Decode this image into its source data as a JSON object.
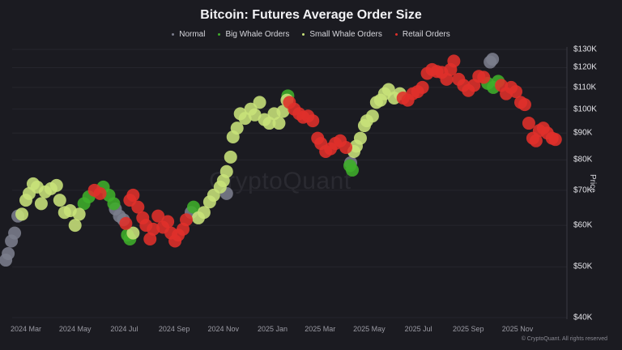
{
  "header": {
    "title": "Bitcoin: Futures Average Order Size"
  },
  "legend": [
    {
      "label": "Normal",
      "color": "#7b7d8c"
    },
    {
      "label": "Big Whale Orders",
      "color": "#3fae2a"
    },
    {
      "label": "Small Whale Orders",
      "color": "#c8e27a"
    },
    {
      "label": "Retail Orders",
      "color": "#e0302a"
    }
  ],
  "axes": {
    "y_label": "Price",
    "y_ticks": [
      "$130K",
      "$120K",
      "$110K",
      "$100K",
      "$90K",
      "$80K",
      "$70K",
      "$60K",
      "$50K",
      "$40K"
    ],
    "x_ticks": [
      "2024 Mar",
      "2024 May",
      "2024 Jul",
      "2024 Sep",
      "2024 Nov",
      "2025 Jan",
      "2025 Mar",
      "2025 May",
      "2025 Jul",
      "2025 Sep",
      "2025 Nov"
    ]
  },
  "watermark": "CryptoQuant",
  "footer": {
    "copyright": "© CryptoQuant. All rights reserved"
  },
  "chart_data": {
    "type": "scatter",
    "title": "Bitcoin: Futures Average Order Size",
    "xlabel": "",
    "ylabel": "Price",
    "y_scale": "log",
    "ylim": [
      40000,
      130000
    ],
    "x_range": [
      "2024-02",
      "2025-12"
    ],
    "grid": true,
    "legend_position": "top",
    "categories": [
      "Normal",
      "Big Whale Orders",
      "Small Whale Orders",
      "Retail Orders"
    ],
    "series": [
      {
        "name": "Normal",
        "color": "#7b7d8c",
        "points": [
          {
            "x": "2024-02-05",
            "y": 51500
          },
          {
            "x": "2024-02-08",
            "y": 53000
          },
          {
            "x": "2024-02-12",
            "y": 56000
          },
          {
            "x": "2024-02-16",
            "y": 58000
          },
          {
            "x": "2024-02-20",
            "y": 62500
          },
          {
            "x": "2024-06-20",
            "y": 64500
          },
          {
            "x": "2024-06-25",
            "y": 62500
          },
          {
            "x": "2024-06-30",
            "y": 61500
          },
          {
            "x": "2024-09-22",
            "y": 63500
          },
          {
            "x": "2024-11-05",
            "y": 69000
          },
          {
            "x": "2025-04-08",
            "y": 79000
          },
          {
            "x": "2025-09-28",
            "y": 123000
          },
          {
            "x": "2025-10-01",
            "y": 124500
          }
        ]
      },
      {
        "name": "Big Whale Orders",
        "color": "#3fae2a",
        "points": [
          {
            "x": "2024-05-12",
            "y": 66000
          },
          {
            "x": "2024-05-18",
            "y": 68000
          },
          {
            "x": "2024-06-05",
            "y": 71000
          },
          {
            "x": "2024-06-12",
            "y": 68500
          },
          {
            "x": "2024-06-18",
            "y": 66000
          },
          {
            "x": "2024-07-05",
            "y": 57500
          },
          {
            "x": "2024-07-08",
            "y": 56500
          },
          {
            "x": "2024-09-25",
            "y": 65000
          },
          {
            "x": "2025-01-20",
            "y": 106000
          },
          {
            "x": "2025-04-07",
            "y": 78000
          },
          {
            "x": "2025-04-10",
            "y": 76500
          },
          {
            "x": "2025-09-25",
            "y": 112000
          },
          {
            "x": "2025-10-02",
            "y": 110000
          },
          {
            "x": "2025-10-08",
            "y": 113000
          }
        ]
      },
      {
        "name": "Small Whale Orders",
        "color": "#c8e27a",
        "points": [
          {
            "x": "2024-02-25",
            "y": 63000
          },
          {
            "x": "2024-03-01",
            "y": 67000
          },
          {
            "x": "2024-03-05",
            "y": 69000
          },
          {
            "x": "2024-03-10",
            "y": 72000
          },
          {
            "x": "2024-03-15",
            "y": 71000
          },
          {
            "x": "2024-03-20",
            "y": 66000
          },
          {
            "x": "2024-03-25",
            "y": 69500
          },
          {
            "x": "2024-04-01",
            "y": 70500
          },
          {
            "x": "2024-04-08",
            "y": 71500
          },
          {
            "x": "2024-04-12",
            "y": 67000
          },
          {
            "x": "2024-04-18",
            "y": 63500
          },
          {
            "x": "2024-04-25",
            "y": 64000
          },
          {
            "x": "2024-05-01",
            "y": 60000
          },
          {
            "x": "2024-05-06",
            "y": 63000
          },
          {
            "x": "2024-07-12",
            "y": 58000
          },
          {
            "x": "2024-10-01",
            "y": 62000
          },
          {
            "x": "2024-10-08",
            "y": 63500
          },
          {
            "x": "2024-10-15",
            "y": 66500
          },
          {
            "x": "2024-10-20",
            "y": 68500
          },
          {
            "x": "2024-10-28",
            "y": 71000
          },
          {
            "x": "2024-11-01",
            "y": 73000
          },
          {
            "x": "2024-11-05",
            "y": 76000
          },
          {
            "x": "2024-11-10",
            "y": 81000
          },
          {
            "x": "2024-11-13",
            "y": 88500
          },
          {
            "x": "2024-11-18",
            "y": 92000
          },
          {
            "x": "2024-11-22",
            "y": 98000
          },
          {
            "x": "2024-11-28",
            "y": 96000
          },
          {
            "x": "2024-12-05",
            "y": 100000
          },
          {
            "x": "2024-12-10",
            "y": 97500
          },
          {
            "x": "2024-12-16",
            "y": 103000
          },
          {
            "x": "2024-12-22",
            "y": 95500
          },
          {
            "x": "2024-12-28",
            "y": 94000
          },
          {
            "x": "2025-01-03",
            "y": 98000
          },
          {
            "x": "2025-01-09",
            "y": 94000
          },
          {
            "x": "2025-01-14",
            "y": 99000
          },
          {
            "x": "2025-01-19",
            "y": 104000
          },
          {
            "x": "2025-04-12",
            "y": 83000
          },
          {
            "x": "2025-04-15",
            "y": 85000
          },
          {
            "x": "2025-04-20",
            "y": 88000
          },
          {
            "x": "2025-04-25",
            "y": 93000
          },
          {
            "x": "2025-04-28",
            "y": 95000
          },
          {
            "x": "2025-05-05",
            "y": 97000
          },
          {
            "x": "2025-05-10",
            "y": 103000
          },
          {
            "x": "2025-05-15",
            "y": 104000
          },
          {
            "x": "2025-05-20",
            "y": 107000
          },
          {
            "x": "2025-05-25",
            "y": 109000
          },
          {
            "x": "2025-06-01",
            "y": 105000
          },
          {
            "x": "2025-06-08",
            "y": 107000
          }
        ]
      },
      {
        "name": "Retail Orders",
        "color": "#e0302a",
        "points": [
          {
            "x": "2024-05-25",
            "y": 70000
          },
          {
            "x": "2024-06-01",
            "y": 69000
          },
          {
            "x": "2024-07-03",
            "y": 60500
          },
          {
            "x": "2024-07-08",
            "y": 67000
          },
          {
            "x": "2024-07-12",
            "y": 68500
          },
          {
            "x": "2024-07-18",
            "y": 65000
          },
          {
            "x": "2024-07-24",
            "y": 62000
          },
          {
            "x": "2024-07-28",
            "y": 60000
          },
          {
            "x": "2024-08-02",
            "y": 56500
          },
          {
            "x": "2024-08-06",
            "y": 59000
          },
          {
            "x": "2024-08-12",
            "y": 62500
          },
          {
            "x": "2024-08-18",
            "y": 59500
          },
          {
            "x": "2024-08-24",
            "y": 61000
          },
          {
            "x": "2024-08-28",
            "y": 58000
          },
          {
            "x": "2024-09-02",
            "y": 56000
          },
          {
            "x": "2024-09-06",
            "y": 57500
          },
          {
            "x": "2024-09-12",
            "y": 59000
          },
          {
            "x": "2024-09-16",
            "y": 61500
          },
          {
            "x": "2025-01-22",
            "y": 103000
          },
          {
            "x": "2025-01-28",
            "y": 100000
          },
          {
            "x": "2025-02-03",
            "y": 98000
          },
          {
            "x": "2025-02-08",
            "y": 96500
          },
          {
            "x": "2025-02-14",
            "y": 97000
          },
          {
            "x": "2025-02-20",
            "y": 95000
          },
          {
            "x": "2025-02-26",
            "y": 88000
          },
          {
            "x": "2025-03-02",
            "y": 86000
          },
          {
            "x": "2025-03-08",
            "y": 83000
          },
          {
            "x": "2025-03-14",
            "y": 84000
          },
          {
            "x": "2025-03-20",
            "y": 86000
          },
          {
            "x": "2025-03-26",
            "y": 87000
          },
          {
            "x": "2025-04-02",
            "y": 84500
          },
          {
            "x": "2025-06-12",
            "y": 105000
          },
          {
            "x": "2025-06-18",
            "y": 104000
          },
          {
            "x": "2025-06-24",
            "y": 107000
          },
          {
            "x": "2025-06-30",
            "y": 108000
          },
          {
            "x": "2025-07-06",
            "y": 110000
          },
          {
            "x": "2025-07-12",
            "y": 117000
          },
          {
            "x": "2025-07-18",
            "y": 119000
          },
          {
            "x": "2025-07-24",
            "y": 118000
          },
          {
            "x": "2025-07-30",
            "y": 117500
          },
          {
            "x": "2025-08-05",
            "y": 114000
          },
          {
            "x": "2025-08-10",
            "y": 119000
          },
          {
            "x": "2025-08-14",
            "y": 123500
          },
          {
            "x": "2025-08-20",
            "y": 114000
          },
          {
            "x": "2025-08-26",
            "y": 111000
          },
          {
            "x": "2025-09-01",
            "y": 108500
          },
          {
            "x": "2025-09-08",
            "y": 111000
          },
          {
            "x": "2025-09-14",
            "y": 115500
          },
          {
            "x": "2025-09-20",
            "y": 115000
          },
          {
            "x": "2025-10-12",
            "y": 111000
          },
          {
            "x": "2025-10-18",
            "y": 107000
          },
          {
            "x": "2025-10-24",
            "y": 110000
          },
          {
            "x": "2025-10-30",
            "y": 108000
          },
          {
            "x": "2025-11-05",
            "y": 103000
          },
          {
            "x": "2025-11-10",
            "y": 102000
          },
          {
            "x": "2025-11-15",
            "y": 94000
          },
          {
            "x": "2025-11-20",
            "y": 88000
          },
          {
            "x": "2025-11-24",
            "y": 87000
          },
          {
            "x": "2025-11-28",
            "y": 91000
          },
          {
            "x": "2025-12-03",
            "y": 92000
          },
          {
            "x": "2025-12-08",
            "y": 90000
          },
          {
            "x": "2025-12-14",
            "y": 88000
          },
          {
            "x": "2025-12-18",
            "y": 87500
          }
        ]
      }
    ]
  }
}
